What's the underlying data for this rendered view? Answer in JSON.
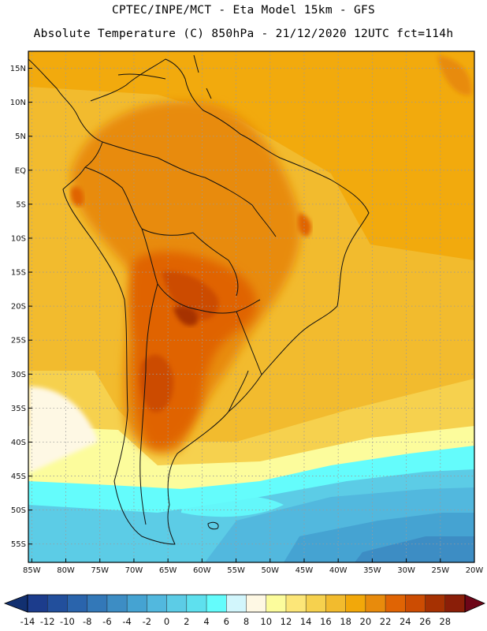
{
  "header": {
    "line1": "CPTEC/INPE/MCT -  Eta Model 15km - GFS",
    "line2": "Absolute Temperature (C) 850hPa - 21/12/2020 12UTC fct=114h"
  },
  "map": {
    "region": "South America",
    "lat_labels": [
      "15N",
      "10N",
      "5N",
      "EQ",
      "5S",
      "10S",
      "15S",
      "20S",
      "25S",
      "30S",
      "35S",
      "40S",
      "45S",
      "50S",
      "55S"
    ],
    "lon_labels": [
      "85W",
      "80W",
      "75W",
      "70W",
      "65W",
      "60W",
      "55W",
      "50W",
      "45W",
      "40W",
      "35W",
      "30W",
      "25W",
      "20W"
    ],
    "lat_range": [
      17.5,
      -57.7
    ],
    "lon_range": [
      -85.5,
      -20.0
    ]
  },
  "colorbar": {
    "labels": [
      "-14",
      "-12",
      "-10",
      "-8",
      "-6",
      "-4",
      "-2",
      "0",
      "2",
      "4",
      "6",
      "8",
      "10",
      "12",
      "14",
      "16",
      "18",
      "20",
      "22",
      "24",
      "26",
      "28"
    ],
    "colors": [
      "#1c3c8c",
      "#224f9c",
      "#2a64ac",
      "#3378b8",
      "#3d8dc4",
      "#45a3d2",
      "#52b8de",
      "#5ccce6",
      "#5ee0ee",
      "#64fcfc",
      "#d2f6fc",
      "#fef8e4",
      "#fcfc9c",
      "#fce678",
      "#f6d14e",
      "#f2bb2e",
      "#f2a80a",
      "#e88b0c",
      "#e06404",
      "#cc4c02",
      "#a63102",
      "#8a1e08"
    ],
    "under_color": "#123070",
    "over_color": "#6e0618"
  }
}
